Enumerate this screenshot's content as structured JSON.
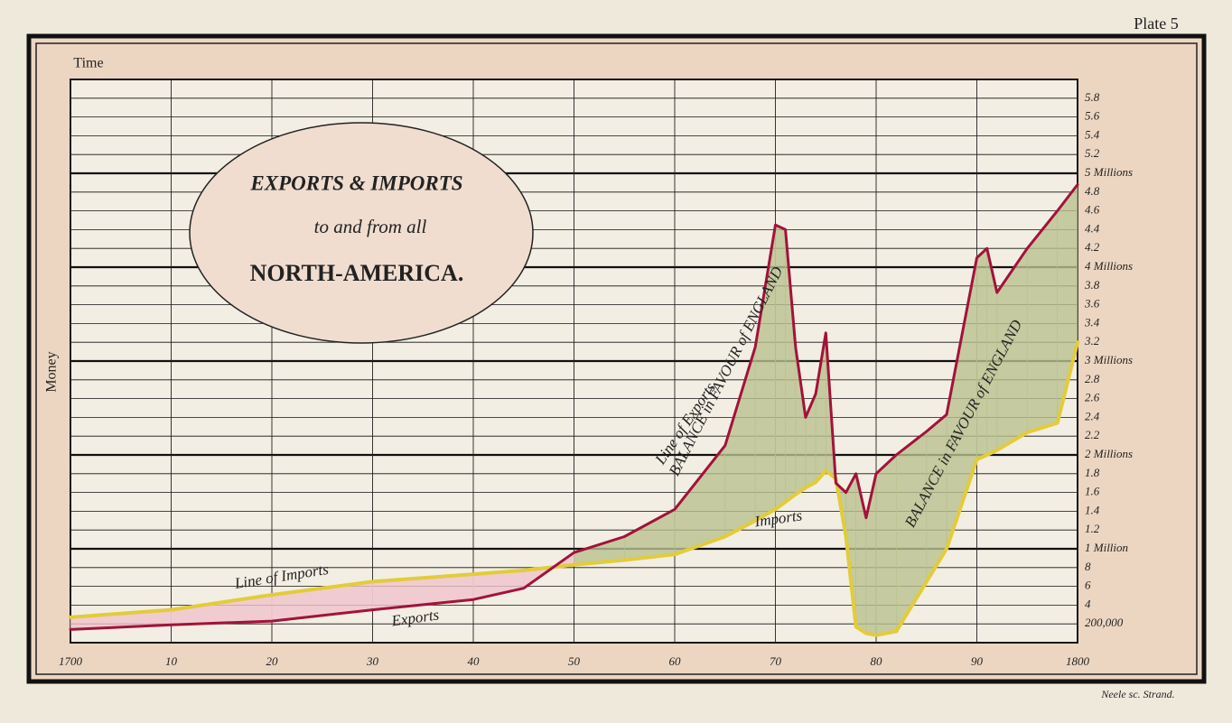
{
  "chart_data": {
    "type": "line",
    "plate": "Plate 5",
    "title": "EXPORTS & IMPORTS",
    "subtitle": "to and from all",
    "title_place": "NORTH-AMERICA.",
    "xlabel": "Time",
    "ylabel": "Money",
    "credit": "Neele sc. Strand.",
    "x": [
      1700,
      1710,
      1720,
      1730,
      1740,
      1745,
      1750,
      1755,
      1760,
      1765,
      1768,
      1770,
      1771,
      1772,
      1773,
      1774,
      1775,
      1776,
      1777,
      1778,
      1779,
      1780,
      1782,
      1785,
      1787,
      1790,
      1791,
      1792,
      1795,
      1798,
      1800
    ],
    "series": [
      {
        "name": "Exports",
        "color": "#a3123a",
        "values": [
          0.14,
          0.19,
          0.23,
          0.35,
          0.46,
          0.58,
          0.96,
          1.13,
          1.42,
          2.1,
          3.15,
          4.45,
          4.4,
          3.15,
          2.4,
          2.65,
          3.3,
          1.7,
          1.6,
          1.8,
          1.33,
          1.8,
          2.0,
          2.25,
          2.43,
          4.1,
          4.2,
          3.73,
          4.2,
          4.6,
          4.88
        ]
      },
      {
        "name": "Imports",
        "color": "#e2cc3a",
        "values": [
          0.27,
          0.35,
          0.51,
          0.65,
          0.73,
          0.77,
          0.83,
          0.88,
          0.94,
          1.13,
          1.3,
          1.42,
          1.5,
          1.58,
          1.65,
          1.71,
          1.83,
          1.75,
          1.13,
          0.17,
          0.1,
          0.08,
          0.12,
          0.65,
          1.0,
          1.95,
          2.0,
          2.05,
          2.24,
          2.34,
          3.2
        ]
      }
    ],
    "annotations": [
      "Line of Exports",
      "BALANCE in FAVOUR of ENGLAND",
      "Imports",
      "BALANCE in FAVOUR of ENGLAND",
      "Line of Imports",
      "Exports"
    ],
    "xlim": [
      1700,
      1800
    ],
    "xticks": [
      1700,
      {
        "value": 1710,
        "label": "10"
      },
      {
        "value": 1720,
        "label": "20"
      },
      {
        "value": 1730,
        "label": "30"
      },
      {
        "value": 1740,
        "label": "40"
      },
      {
        "value": 1750,
        "label": "50"
      },
      {
        "value": 1760,
        "label": "60"
      },
      {
        "value": 1770,
        "label": "70"
      },
      {
        "value": 1780,
        "label": "80"
      },
      {
        "value": 1790,
        "label": "90"
      },
      1800
    ],
    "ylim": [
      0,
      6
    ],
    "yticks": [
      {
        "value": 0.2,
        "label": "200,000"
      },
      {
        "value": 0.4,
        "label": "4"
      },
      {
        "value": 0.6,
        "label": "6"
      },
      {
        "value": 0.8,
        "label": "8"
      },
      {
        "value": 1,
        "label": "1 Million"
      },
      1.2,
      1.4,
      1.6,
      1.8,
      {
        "value": 2,
        "label": "2 Millions"
      },
      2.2,
      2.4,
      2.6,
      2.8,
      {
        "value": 3,
        "label": "3 Millions"
      },
      3.2,
      3.4,
      3.6,
      3.8,
      {
        "value": 4,
        "label": "4 Millions"
      },
      4.2,
      4.4,
      4.6,
      4.8,
      {
        "value": 5,
        "label": "5 Millions"
      },
      5.2,
      5.4,
      5.6,
      5.8
    ],
    "grid": true
  }
}
